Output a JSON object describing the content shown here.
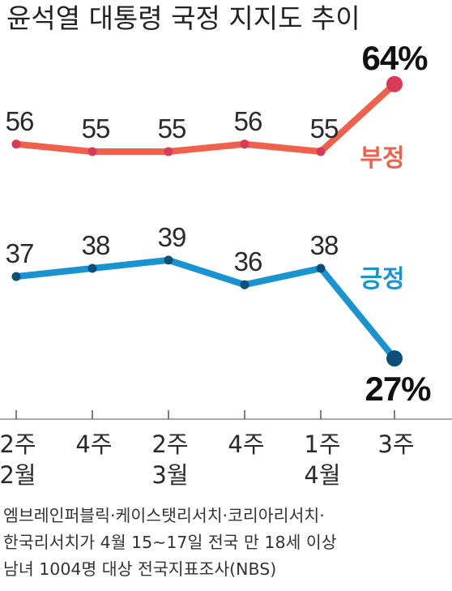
{
  "title": "윤석열 대통령 국정 지지도 추이",
  "chart_data": {
    "type": "line",
    "title": "윤석열 대통령 국정 지지도 추이",
    "categories": [
      [
        "2주",
        "2월"
      ],
      [
        "4주",
        ""
      ],
      [
        "2주",
        "3월"
      ],
      [
        "4주",
        ""
      ],
      [
        "1주",
        "4월"
      ],
      [
        "3주",
        ""
      ]
    ],
    "series": [
      {
        "name": "부정",
        "values": [
          56,
          55,
          55,
          56,
          55,
          64
        ],
        "labels": [
          "56",
          "55",
          "55",
          "56",
          "55",
          "64%"
        ],
        "color": "#f0614b",
        "marker_color": "#d93a55"
      },
      {
        "name": "긍정",
        "values": [
          37,
          38,
          39,
          36,
          38,
          27
        ],
        "labels": [
          "37",
          "38",
          "39",
          "36",
          "38",
          "27%"
        ],
        "color": "#1a93d1",
        "marker_color": "#0d4f78"
      }
    ],
    "grid": false,
    "legend": "inline-right"
  },
  "source_lines": [
    "엠브레인퍼블릭·케이스탯리서치·코리아리서치·",
    "한국리서치가 4월 15~17일 전국 만 18세 이상",
    "남녀 1004명 대상 전국지표조사(NBS)"
  ]
}
